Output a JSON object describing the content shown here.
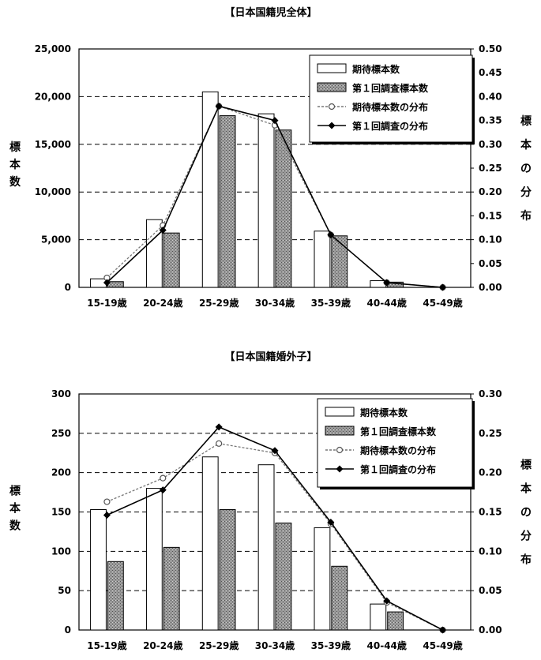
{
  "chart_data": [
    {
      "type": "bar",
      "title": "【日本国籍児全体】",
      "ylabel": "標本数",
      "y2label": "標本の分布",
      "categories": [
        "15-19歳",
        "20-24歳",
        "25-29歳",
        "30-34歳",
        "35-39歳",
        "40-44歳",
        "45-49歳"
      ],
      "ylim": [
        0,
        25000
      ],
      "y2lim": [
        0,
        0.5
      ],
      "yticks": [
        "0",
        "5,000",
        "10,000",
        "15,000",
        "20,000",
        "25,000"
      ],
      "y2ticks": [
        "0.00",
        "0.05",
        "0.10",
        "0.15",
        "0.20",
        "0.25",
        "0.30",
        "0.35",
        "0.40",
        "0.45",
        "0.50"
      ],
      "grid": true,
      "legend_position": "top-right",
      "series": [
        {
          "name": "期待標本数",
          "kind": "bar",
          "values": [
            900,
            7100,
            20500,
            18200,
            5900,
            700,
            0
          ]
        },
        {
          "name": "第１回調査標本数",
          "kind": "bar",
          "values": [
            600,
            5700,
            18000,
            16500,
            5400,
            550,
            0
          ]
        },
        {
          "name": "期待標本数の分布",
          "kind": "line",
          "values": [
            0.02,
            0.13,
            0.38,
            0.34,
            0.11,
            0.01,
            0.0
          ]
        },
        {
          "name": "第１回調査の分布",
          "kind": "line",
          "values": [
            0.01,
            0.12,
            0.38,
            0.35,
            0.11,
            0.01,
            0.0
          ]
        }
      ]
    },
    {
      "type": "bar",
      "title": "【日本国籍婚外子】",
      "ylabel": "標本数",
      "y2label": "標本の分布",
      "categories": [
        "15-19歳",
        "20-24歳",
        "25-29歳",
        "30-34歳",
        "35-39歳",
        "40-44歳",
        "45-49歳"
      ],
      "ylim": [
        0,
        300
      ],
      "y2lim": [
        0,
        0.3
      ],
      "yticks": [
        "0",
        "50",
        "100",
        "150",
        "200",
        "250",
        "300"
      ],
      "y2ticks": [
        "0.00",
        "0.05",
        "0.10",
        "0.15",
        "0.20",
        "0.25",
        "0.30"
      ],
      "grid": true,
      "legend_position": "top-right",
      "series": [
        {
          "name": "期待標本数",
          "kind": "bar",
          "values": [
            153,
            180,
            220,
            210,
            130,
            33,
            0
          ]
        },
        {
          "name": "第１回調査標本数",
          "kind": "bar",
          "values": [
            87,
            105,
            153,
            136,
            81,
            23,
            0
          ]
        },
        {
          "name": "期待標本数の分布",
          "kind": "line",
          "values": [
            0.163,
            0.193,
            0.237,
            0.225,
            0.135,
            0.035,
            0.0
          ]
        },
        {
          "name": "第１回調査の分布",
          "kind": "line",
          "values": [
            0.146,
            0.178,
            0.258,
            0.228,
            0.137,
            0.037,
            0.0
          ]
        }
      ]
    }
  ]
}
